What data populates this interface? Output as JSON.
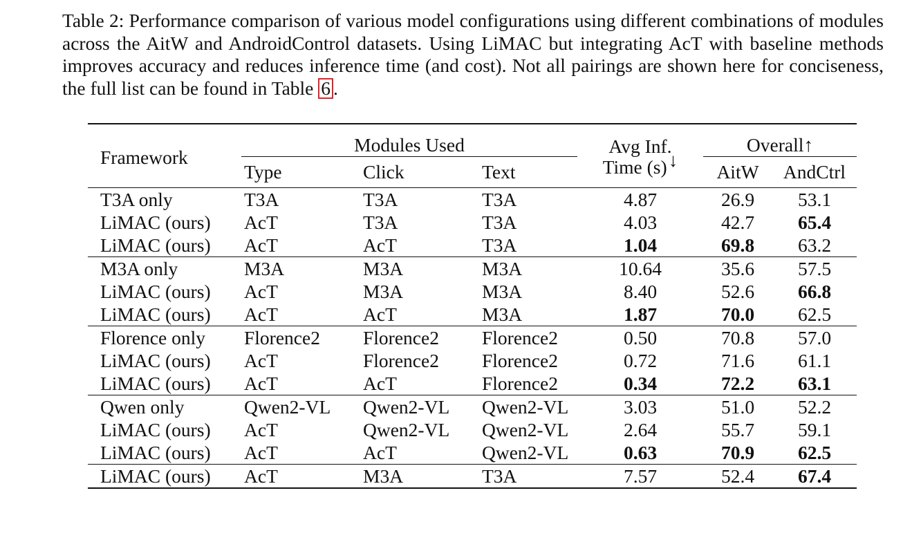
{
  "caption": {
    "text": "Table 2: Performance comparison of various model configurations using different combinations of modules across the AitW and AndroidControl datasets. Using LiMAC but integrating AcT with baseline methods improves accuracy and reduces inference time (and cost). Not all pairings are shown here for conciseness, the full list can be found in Table",
    "ref": "6",
    "end": "."
  },
  "headers": {
    "framework": "Framework",
    "modules_used": "Modules Used",
    "type": "Type",
    "click": "Click",
    "text": "Text",
    "avg_inf_line1": "Avg Inf.",
    "avg_inf_line2": "Time (s)",
    "avg_inf_arrow": "↓",
    "overall": "Overall↑",
    "aitw": "AitW",
    "andctrl": "AndCtrl"
  },
  "groups": [
    {
      "rows": [
        {
          "framework": "T3A only",
          "type": "T3A",
          "click": "T3A",
          "text": "T3A",
          "time": "4.87",
          "aitw": "26.9",
          "andctrl": "53.1",
          "bold": []
        },
        {
          "framework": "LiMAC (ours)",
          "type": "AcT",
          "click": "T3A",
          "text": "T3A",
          "time": "4.03",
          "aitw": "42.7",
          "andctrl": "65.4",
          "bold": [
            "andctrl"
          ]
        },
        {
          "framework": "LiMAC (ours)",
          "type": "AcT",
          "click": "AcT",
          "text": "T3A",
          "time": "1.04",
          "aitw": "69.8",
          "andctrl": "63.2",
          "bold": [
            "time",
            "aitw"
          ]
        }
      ]
    },
    {
      "rows": [
        {
          "framework": "M3A only",
          "type": "M3A",
          "click": "M3A",
          "text": "M3A",
          "time": "10.64",
          "aitw": "35.6",
          "andctrl": "57.5",
          "bold": []
        },
        {
          "framework": "LiMAC (ours)",
          "type": "AcT",
          "click": "M3A",
          "text": "M3A",
          "time": "8.40",
          "aitw": "52.6",
          "andctrl": "66.8",
          "bold": [
            "andctrl"
          ]
        },
        {
          "framework": "LiMAC (ours)",
          "type": "AcT",
          "click": "AcT",
          "text": "M3A",
          "time": "1.87",
          "aitw": "70.0",
          "andctrl": "62.5",
          "bold": [
            "time",
            "aitw"
          ]
        }
      ]
    },
    {
      "rows": [
        {
          "framework": "Florence only",
          "type": "Florence2",
          "click": "Florence2",
          "text": "Florence2",
          "time": "0.50",
          "aitw": "70.8",
          "andctrl": "57.0",
          "bold": []
        },
        {
          "framework": "LiMAC (ours)",
          "type": "AcT",
          "click": "Florence2",
          "text": "Florence2",
          "time": "0.72",
          "aitw": "71.6",
          "andctrl": "61.1",
          "bold": []
        },
        {
          "framework": "LiMAC (ours)",
          "type": "AcT",
          "click": "AcT",
          "text": "Florence2",
          "time": "0.34",
          "aitw": "72.2",
          "andctrl": "63.1",
          "bold": [
            "time",
            "aitw",
            "andctrl"
          ]
        }
      ]
    },
    {
      "rows": [
        {
          "framework": "Qwen only",
          "type": "Qwen2-VL",
          "click": "Qwen2-VL",
          "text": "Qwen2-VL",
          "time": "3.03",
          "aitw": "51.0",
          "andctrl": "52.2",
          "bold": []
        },
        {
          "framework": "LiMAC (ours)",
          "type": "AcT",
          "click": "Qwen2-VL",
          "text": "Qwen2-VL",
          "time": "2.64",
          "aitw": "55.7",
          "andctrl": "59.1",
          "bold": []
        },
        {
          "framework": "LiMAC (ours)",
          "type": "AcT",
          "click": "AcT",
          "text": "Qwen2-VL",
          "time": "0.63",
          "aitw": "70.9",
          "andctrl": "62.5",
          "bold": [
            "time",
            "aitw",
            "andctrl"
          ]
        }
      ]
    },
    {
      "rows": [
        {
          "framework": "LiMAC (ours)",
          "type": "AcT",
          "click": "M3A",
          "text": "T3A",
          "time": "7.57",
          "aitw": "52.4",
          "andctrl": "67.4",
          "bold": [
            "andctrl"
          ]
        }
      ]
    }
  ]
}
